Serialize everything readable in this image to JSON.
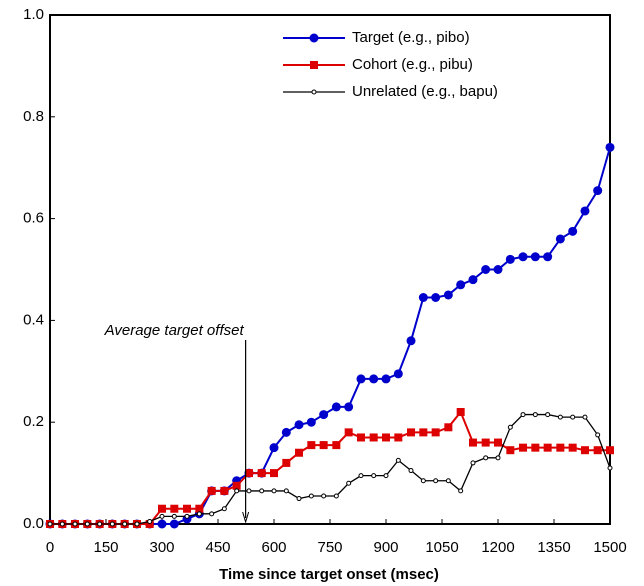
{
  "chart_data": {
    "type": "line",
    "xlabel": "Time since target onset (msec)",
    "x": [
      0,
      33,
      67,
      100,
      133,
      167,
      200,
      233,
      267,
      300,
      333,
      367,
      400,
      433,
      467,
      500,
      533,
      567,
      600,
      633,
      667,
      700,
      733,
      767,
      800,
      833,
      867,
      900,
      933,
      967,
      1000,
      1033,
      1067,
      1100,
      1133,
      1167,
      1200,
      1233,
      1267,
      1300,
      1333,
      1367,
      1400,
      1433,
      1467,
      1500
    ],
    "series": [
      {
        "name": "Target (e.g., pibo)",
        "color": "#0000cc",
        "marker": "circle",
        "values": [
          0,
          0,
          0,
          0,
          0,
          0,
          0,
          0,
          0,
          0,
          0,
          0.01,
          0.02,
          0.065,
          0.065,
          0.085,
          0.1,
          0.1,
          0.15,
          0.18,
          0.195,
          0.2,
          0.215,
          0.23,
          0.23,
          0.285,
          0.285,
          0.285,
          0.295,
          0.36,
          0.445,
          0.445,
          0.45,
          0.47,
          0.48,
          0.5,
          0.5,
          0.52,
          0.525,
          0.525,
          0.525,
          0.56,
          0.575,
          0.615,
          0.655,
          0.74
        ]
      },
      {
        "name": "Cohort (e.g., pibu)",
        "color": "#dd0000",
        "marker": "square",
        "values": [
          0,
          0,
          0,
          0,
          0,
          0,
          0,
          0,
          0,
          0.03,
          0.03,
          0.03,
          0.03,
          0.065,
          0.065,
          0.075,
          0.1,
          0.1,
          0.1,
          0.12,
          0.14,
          0.155,
          0.155,
          0.155,
          0.18,
          0.17,
          0.17,
          0.17,
          0.17,
          0.18,
          0.18,
          0.18,
          0.19,
          0.22,
          0.16,
          0.16,
          0.16,
          0.145,
          0.15,
          0.15,
          0.15,
          0.15,
          0.15,
          0.145,
          0.145,
          0.145
        ]
      },
      {
        "name": "Unrelated (e.g., bapu)",
        "color": "#000000",
        "marker": "open-circle",
        "values": [
          0,
          0,
          0,
          0,
          0,
          0,
          0,
          0,
          0.005,
          0.015,
          0.015,
          0.015,
          0.02,
          0.02,
          0.03,
          0.065,
          0.065,
          0.065,
          0.065,
          0.065,
          0.05,
          0.055,
          0.055,
          0.055,
          0.08,
          0.095,
          0.095,
          0.095,
          0.125,
          0.105,
          0.085,
          0.085,
          0.085,
          0.065,
          0.12,
          0.13,
          0.13,
          0.19,
          0.215,
          0.215,
          0.215,
          0.21,
          0.21,
          0.21,
          0.175,
          0.11
        ]
      }
    ],
    "annotation": {
      "text": "Average target offset",
      "x": 524
    },
    "xlim": [
      0,
      1500
    ],
    "xticks": [
      0,
      150,
      300,
      450,
      600,
      750,
      900,
      1050,
      1200,
      1350,
      1500
    ],
    "ylim": [
      0,
      1
    ],
    "yticks": [
      {
        "value": 0,
        "label": "0.0"
      },
      0.2,
      0.4,
      0.6,
      0.8,
      {
        "value": 1,
        "label": "1.0"
      }
    ],
    "legend": "upper-right"
  }
}
